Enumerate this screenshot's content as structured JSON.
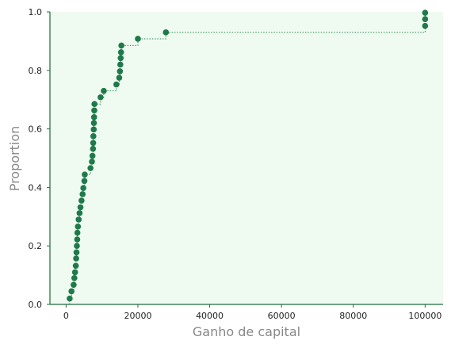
{
  "chart_data": {
    "type": "scatter",
    "subtype": "ecdf",
    "xlabel": "Ganho de capital",
    "ylabel": "Proportion",
    "xlim": [
      -4500,
      105000
    ],
    "ylim": [
      0,
      1
    ],
    "xticks": [
      0,
      20000,
      40000,
      60000,
      80000,
      100000
    ],
    "xtick_labels": [
      "0",
      "20000",
      "40000",
      "60000",
      "80000",
      "100000"
    ],
    "yticks": [
      0,
      0.2,
      0.4,
      0.6,
      0.8,
      1.0
    ],
    "ytick_labels": [
      "0.0",
      "0.2",
      "0.4",
      "0.6",
      "0.8",
      "1.0"
    ],
    "grid": false,
    "background_color": "#effaf1",
    "point_color": "#1e7a4a",
    "line_color": "#2e8a57",
    "series": [
      {
        "x": [
          1000,
          1500,
          2100,
          2300,
          2500,
          2700,
          2800,
          2900,
          3000,
          3100,
          3150,
          3300,
          3500,
          3750,
          4000,
          4300,
          4600,
          4800,
          5100,
          5200,
          6800,
          7200,
          7350,
          7500,
          7550,
          7600,
          7700,
          7750,
          7800,
          7850,
          7900,
          9600,
          10500,
          14000,
          14800,
          15000,
          15100,
          15200,
          15300,
          15400,
          20000,
          27800,
          100000,
          100000,
          100000
        ],
        "y": [
          0.02,
          0.045,
          0.067,
          0.09,
          0.11,
          0.132,
          0.157,
          0.178,
          0.2,
          0.222,
          0.245,
          0.266,
          0.29,
          0.312,
          0.332,
          0.355,
          0.377,
          0.398,
          0.422,
          0.444,
          0.466,
          0.488,
          0.508,
          0.532,
          0.552,
          0.575,
          0.598,
          0.62,
          0.64,
          0.663,
          0.685,
          0.708,
          0.73,
          0.752,
          0.775,
          0.797,
          0.82,
          0.842,
          0.862,
          0.885,
          0.908,
          0.93,
          0.952,
          0.975,
          0.997
        ]
      }
    ]
  }
}
